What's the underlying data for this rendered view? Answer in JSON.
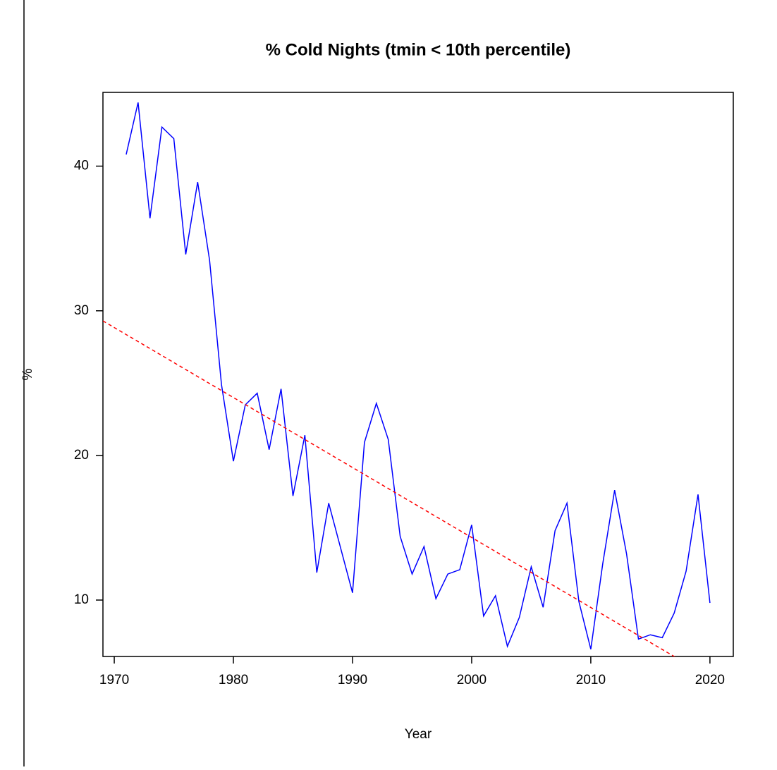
{
  "chart_data": {
    "type": "line",
    "title": "% Cold Nights (tmin < 10th percentile)",
    "x_label": "Year",
    "y_label": "%",
    "x": [
      1971,
      1972,
      1973,
      1974,
      1975,
      1976,
      1977,
      1978,
      1979,
      1980,
      1981,
      1982,
      1983,
      1984,
      1985,
      1986,
      1987,
      1988,
      1989,
      1990,
      1991,
      1992,
      1993,
      1994,
      1995,
      1996,
      1997,
      1998,
      1999,
      2000,
      2001,
      2002,
      2003,
      2004,
      2005,
      2006,
      2007,
      2008,
      2009,
      2010,
      2011,
      2012,
      2013,
      2014,
      2015,
      2016,
      2017,
      2018,
      2019,
      2020
    ],
    "series": [
      {
        "name": "% Cold Nights",
        "color": "#0000ff",
        "values": [
          40.8,
          44.4,
          36.4,
          42.7,
          41.9,
          33.9,
          38.9,
          33.5,
          24.9,
          19.6,
          23.5,
          24.3,
          20.4,
          24.6,
          17.2,
          21.4,
          11.9,
          16.7,
          13.6,
          10.5,
          20.9,
          23.6,
          21.1,
          14.4,
          11.8,
          13.7,
          10.1,
          11.8,
          12.1,
          15.2,
          8.9,
          10.3,
          6.8,
          8.8,
          12.3,
          9.5,
          14.8,
          16.7,
          9.9,
          6.6,
          12.5,
          17.6,
          13.2,
          7.3,
          7.6,
          7.4,
          9.1,
          12.0,
          17.3,
          9.8
        ]
      },
      {
        "name": "trend",
        "color": "#ff0000",
        "dashed": true,
        "x": [
          1969.05,
          2021.96
        ],
        "values": [
          29.3,
          3.7
        ]
      }
    ],
    "xlim": [
      1969.05,
      2021.96
    ],
    "ylim": [
      6.1,
      45.1
    ],
    "xticks": [
      1970,
      1980,
      1990,
      2000,
      2010,
      2020
    ],
    "yticks": [
      10,
      20,
      30,
      40
    ]
  }
}
